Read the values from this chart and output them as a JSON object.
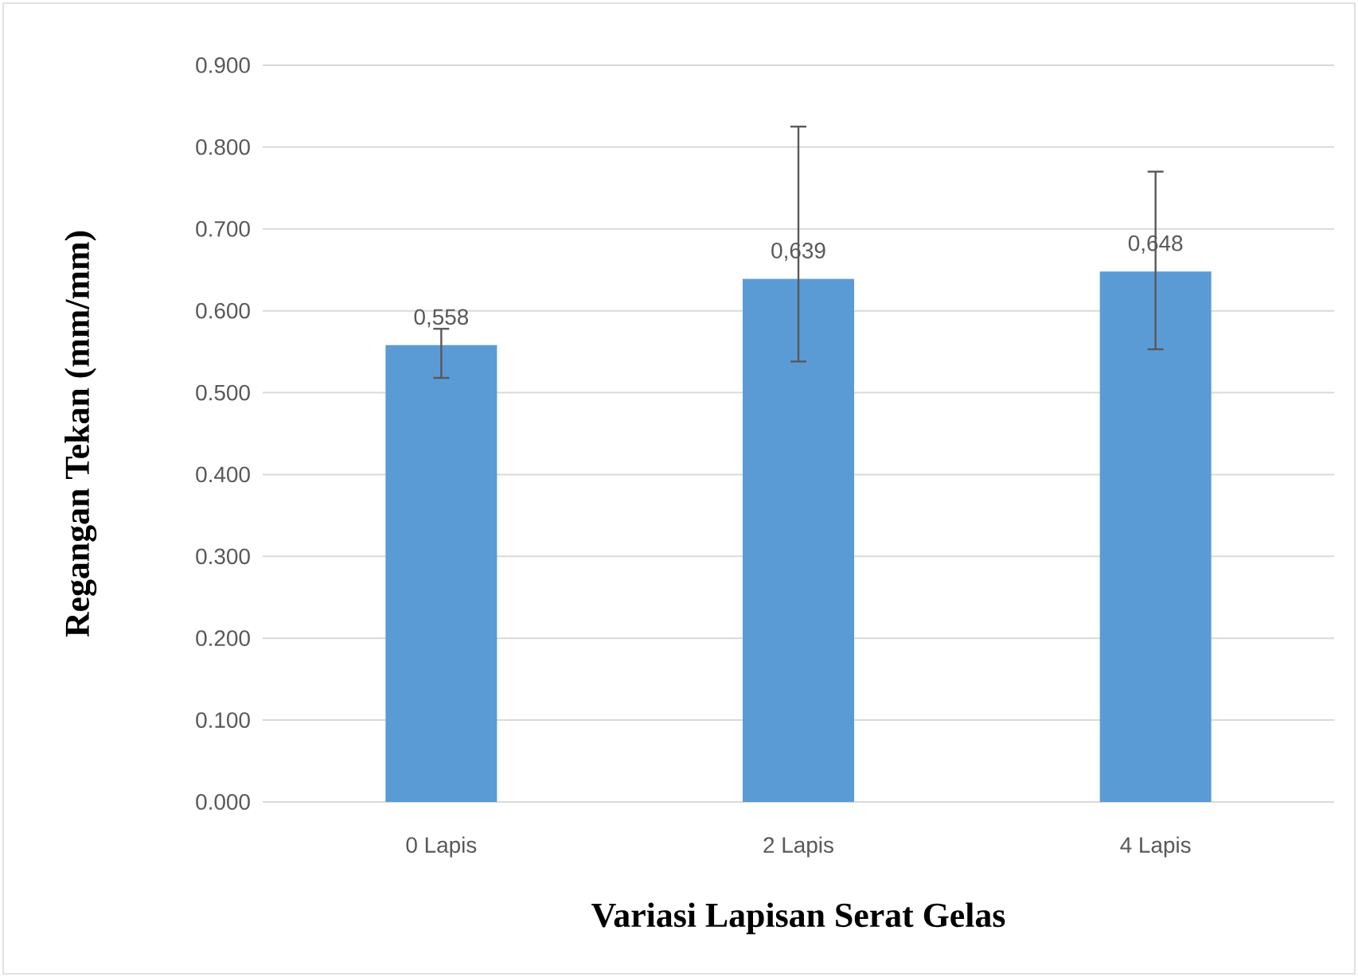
{
  "chart_data": {
    "type": "bar",
    "xlabel": "Variasi Lapisan Serat Gelas",
    "ylabel": "Regangan Tekan (mm/mm)",
    "categories": [
      "0 Lapis",
      "2 Lapis",
      "4 Lapis"
    ],
    "values": [
      0.558,
      0.639,
      0.648
    ],
    "value_labels": [
      "0,558",
      "0,639",
      "0,648"
    ],
    "errors": [
      [
        0.518,
        0.578
      ],
      [
        0.538,
        0.825
      ],
      [
        0.553,
        0.77
      ]
    ],
    "color": "#5b9bd5",
    "ylim": [
      0,
      0.9
    ],
    "yticks": [
      {
        "value": 0,
        "label": "0.000"
      },
      {
        "value": 0.1,
        "label": "0.100"
      },
      {
        "value": 0.2,
        "label": "0.200"
      },
      {
        "value": 0.3,
        "label": "0.300"
      },
      {
        "value": 0.4,
        "label": "0.400"
      },
      {
        "value": 0.5,
        "label": "0.500"
      },
      {
        "value": 0.6,
        "label": "0.600"
      },
      {
        "value": 0.7,
        "label": "0.700"
      },
      {
        "value": 0.8,
        "label": "0.800"
      },
      {
        "value": 0.9,
        "label": "0.900"
      }
    ],
    "grid": "y"
  }
}
